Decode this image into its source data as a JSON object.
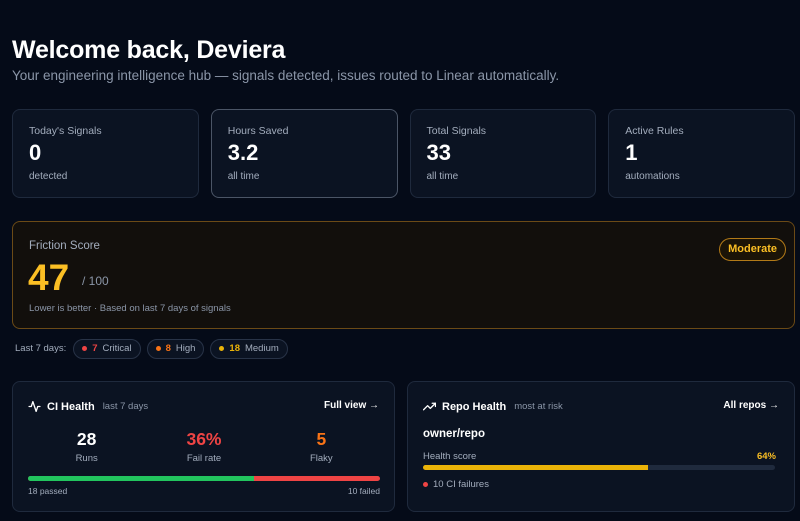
{
  "header": {
    "title": "Welcome back, Deviera",
    "subtitle": "Your engineering intelligence hub — signals detected, issues routed to Linear automatically."
  },
  "stats": [
    {
      "label": "Today's Signals",
      "value": "0",
      "sub": "detected"
    },
    {
      "label": "Hours Saved",
      "value": "3.2",
      "sub": "all time"
    },
    {
      "label": "Total Signals",
      "value": "33",
      "sub": "all time"
    },
    {
      "label": "Active Rules",
      "value": "1",
      "sub": "automations"
    }
  ],
  "friction": {
    "label": "Friction Score",
    "score": "47",
    "max": "/ 100",
    "note": "Lower is better · Based on last 7 days of signals",
    "badge": "Moderate"
  },
  "severity": {
    "lead": "Last 7 days:",
    "items": [
      {
        "count": "7",
        "label": "Critical",
        "color": "#ef4444"
      },
      {
        "count": "8",
        "label": "High",
        "color": "#f97316"
      },
      {
        "count": "18",
        "label": "Medium",
        "color": "#eab308"
      }
    ]
  },
  "ci_health": {
    "title": "CI Health",
    "sub": "last 7 days",
    "link": "Full view →",
    "icon": "activity-icon",
    "metrics": [
      {
        "value": "28",
        "label": "Runs",
        "color": "#ffffff"
      },
      {
        "value": "36%",
        "label": "Fail rate",
        "color": "#ef4444"
      },
      {
        "value": "5",
        "label": "Flaky",
        "color": "#f97316"
      }
    ],
    "passed_fraction": 0.643,
    "passed_label": "18 passed",
    "failed_label": "10 failed"
  },
  "repo_health": {
    "title": "Repo Health",
    "sub": "most at risk",
    "link": "All repos →",
    "icon": "trending-up-icon",
    "repo": "owner/repo",
    "health_label": "Health score",
    "health_pct": "64%",
    "health_fraction": 0.64,
    "failures": "10 CI failures"
  },
  "colors": {
    "accent_amber": "#fbbf24",
    "danger": "#ef4444",
    "success": "#22c55e",
    "warning_orange": "#f97316"
  }
}
